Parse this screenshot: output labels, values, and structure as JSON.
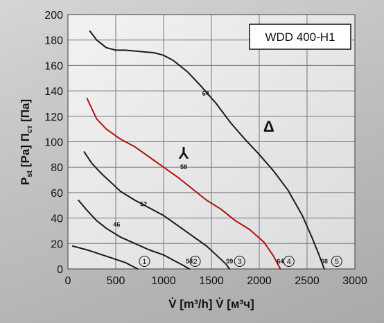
{
  "chart_data": {
    "type": "line",
    "title": "WDD 400-H1",
    "xlabel": "V̇ [m³/h]  V̇ [м³ч]",
    "ylabel_parts": [
      "P",
      "st",
      " [Pa]    П",
      "ст",
      " [Па]"
    ],
    "xlim": [
      0,
      3000
    ],
    "ylim": [
      0,
      200
    ],
    "x_ticks": [
      0,
      500,
      1000,
      1500,
      2000,
      2500,
      3000
    ],
    "y_ticks": [
      0,
      20,
      40,
      60,
      80,
      100,
      120,
      140,
      160,
      180,
      200
    ],
    "grid": true,
    "series": [
      {
        "id": "1",
        "color": "#1a1a1a",
        "points": [
          [
            50,
            18
          ],
          [
            200,
            15
          ],
          [
            400,
            10
          ],
          [
            600,
            5
          ],
          [
            730,
            0
          ]
        ]
      },
      {
        "id": "2",
        "color": "#1a1a1a",
        "points": [
          [
            110,
            54
          ],
          [
            200,
            46
          ],
          [
            300,
            38
          ],
          [
            400,
            32
          ],
          [
            550,
            25
          ],
          [
            700,
            20
          ],
          [
            850,
            15
          ],
          [
            1000,
            11
          ],
          [
            1100,
            7
          ],
          [
            1200,
            3
          ],
          [
            1270,
            0
          ]
        ]
      },
      {
        "id": "3",
        "color": "#1a1a1a",
        "points": [
          [
            170,
            92
          ],
          [
            250,
            83
          ],
          [
            350,
            75
          ],
          [
            450,
            68
          ],
          [
            550,
            61
          ],
          [
            700,
            54
          ],
          [
            850,
            48
          ],
          [
            1000,
            42
          ],
          [
            1150,
            34
          ],
          [
            1300,
            26
          ],
          [
            1450,
            18
          ],
          [
            1550,
            11
          ],
          [
            1650,
            4
          ],
          [
            1690,
            0
          ]
        ]
      },
      {
        "id": "4",
        "color": "#b01010",
        "points": [
          [
            200,
            134
          ],
          [
            300,
            118
          ],
          [
            400,
            110
          ],
          [
            550,
            102
          ],
          [
            700,
            96
          ],
          [
            850,
            88
          ],
          [
            1000,
            80
          ],
          [
            1150,
            72
          ],
          [
            1300,
            63
          ],
          [
            1450,
            54
          ],
          [
            1600,
            47
          ],
          [
            1750,
            38
          ],
          [
            1900,
            31
          ],
          [
            2050,
            21
          ],
          [
            2150,
            10
          ],
          [
            2220,
            0
          ]
        ]
      },
      {
        "id": "5",
        "color": "#1a1a1a",
        "points": [
          [
            230,
            187
          ],
          [
            300,
            180
          ],
          [
            400,
            174
          ],
          [
            500,
            172
          ],
          [
            600,
            172
          ],
          [
            750,
            171
          ],
          [
            900,
            170
          ],
          [
            1000,
            168
          ],
          [
            1100,
            164
          ],
          [
            1250,
            155
          ],
          [
            1400,
            143
          ],
          [
            1550,
            130
          ],
          [
            1700,
            115
          ],
          [
            1850,
            102
          ],
          [
            2000,
            90
          ],
          [
            2150,
            77
          ],
          [
            2300,
            62
          ],
          [
            2450,
            42
          ],
          [
            2550,
            25
          ],
          [
            2620,
            12
          ],
          [
            2680,
            0
          ]
        ]
      }
    ],
    "point_labels": [
      {
        "text": "64",
        "x": 1440,
        "y": 138
      },
      {
        "text": "58",
        "x": 1210,
        "y": 80
      },
      {
        "text": "52",
        "x": 790,
        "y": 51
      },
      {
        "text": "46",
        "x": 510,
        "y": 35
      },
      {
        "text": "54",
        "x": 1270,
        "y": 6
      },
      {
        "text": "59",
        "x": 1690,
        "y": 6
      },
      {
        "text": "64",
        "x": 2220,
        "y": 6
      },
      {
        "text": "68",
        "x": 2680,
        "y": 6
      }
    ],
    "curve_numbers": [
      {
        "text": "1",
        "x": 800,
        "y": 6
      },
      {
        "text": "2",
        "x": 1330,
        "y": 6
      },
      {
        "text": "3",
        "x": 1795,
        "y": 6
      },
      {
        "text": "4",
        "x": 2310,
        "y": 6
      },
      {
        "text": "5",
        "x": 2810,
        "y": 6
      }
    ],
    "annotations": [
      {
        "text": "Δ",
        "meaning": "delta-connection-symbol",
        "x": 2100,
        "y": 108
      },
      {
        "text": "⅄",
        "meaning": "star-connection-symbol",
        "x": 1210,
        "y": 87
      }
    ]
  }
}
